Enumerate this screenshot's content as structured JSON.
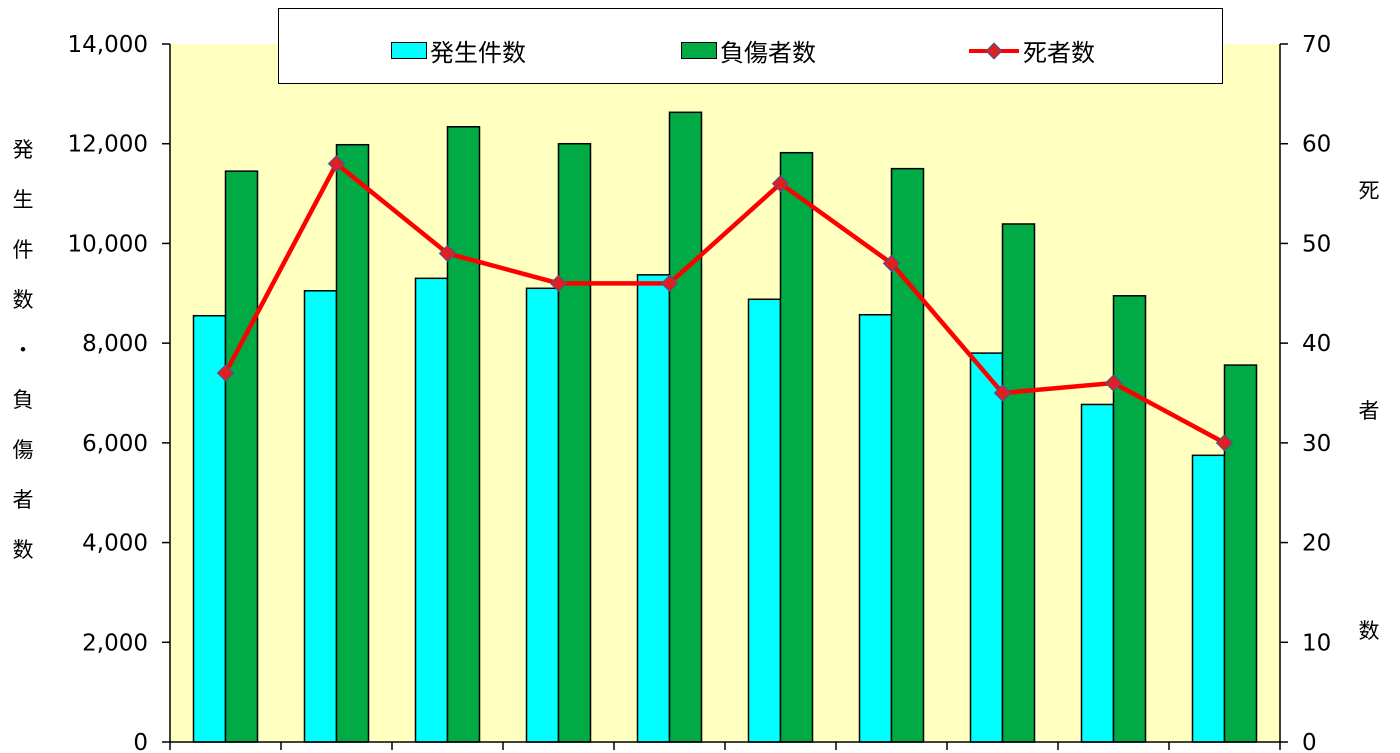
{
  "chart_data": {
    "type": "bar",
    "title": "",
    "x": [
      "",
      "",
      "",
      "",
      "",
      "",
      "",
      "",
      "",
      ""
    ],
    "series": [
      {
        "name": "発生件数",
        "kind": "bar",
        "axis": "left",
        "color": "#00ffff",
        "values": [
          8550,
          9050,
          9300,
          9100,
          9370,
          8880,
          8570,
          7800,
          6770,
          5750
        ]
      },
      {
        "name": "負傷者数",
        "kind": "bar",
        "axis": "left",
        "color": "#00aa44",
        "values": [
          11450,
          11980,
          12340,
          12000,
          12630,
          11820,
          11500,
          10390,
          8950,
          7560
        ]
      },
      {
        "name": "死者数",
        "kind": "line",
        "axis": "right",
        "color": "#ff0000",
        "values": [
          37,
          58,
          49,
          46,
          46,
          56,
          48,
          35,
          36,
          30
        ]
      }
    ],
    "y_left": {
      "label": "発生件数・負傷者数",
      "min": 0,
      "max": 14000,
      "ticks": [
        "0",
        "2,000",
        "4,000",
        "6,000",
        "8,000",
        "10,000",
        "12,000",
        "14,000"
      ]
    },
    "y_right": {
      "label": "死者数",
      "min": 0,
      "max": 70,
      "ticks": [
        "0",
        "10",
        "20",
        "30",
        "40",
        "50",
        "60",
        "70"
      ]
    },
    "plot_background": "#ffffc0",
    "legend": "top"
  }
}
